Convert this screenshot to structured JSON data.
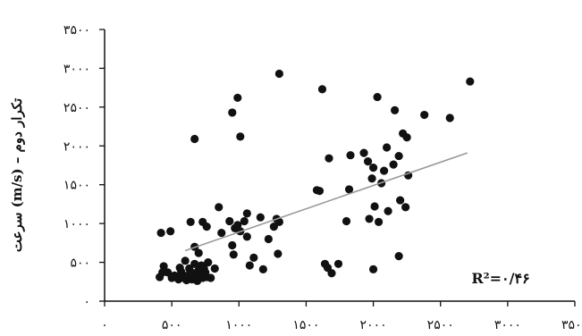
{
  "chart_data": {
    "type": "scatter",
    "title": "",
    "xlabel": "",
    "ylabel": "سرعت (m/s) – تکرار دوم",
    "xlim": [
      0,
      3500
    ],
    "ylim": [
      0,
      3500
    ],
    "x_ticks": [
      0,
      500,
      1000,
      1500,
      2000,
      2500,
      3000,
      3500
    ],
    "y_ticks": [
      0,
      500,
      1000,
      1500,
      2000,
      2500,
      3000,
      3500
    ],
    "x_tick_labels": [
      "۰",
      "۵۰۰",
      "۱۰۰۰",
      "۱۵۰۰",
      "۲۰۰۰",
      "۲۵۰۰",
      "۳۰۰۰",
      "۳۵۰۰"
    ],
    "y_tick_labels": [
      "۰",
      "۵۰۰",
      "۱۰۰۰",
      "۱۵۰۰",
      "۲۰۰۰",
      "۲۵۰۰",
      "۳۰۰۰",
      "۳۵۰۰"
    ],
    "grid": false,
    "annotation": "R²=۰/۴۶",
    "trendline": {
      "x": [
        600,
        2700
      ],
      "y": [
        650,
        1910
      ]
    },
    "points": [
      {
        "x": 410,
        "y": 310
      },
      {
        "x": 430,
        "y": 370
      },
      {
        "x": 440,
        "y": 450
      },
      {
        "x": 470,
        "y": 370
      },
      {
        "x": 500,
        "y": 300
      },
      {
        "x": 520,
        "y": 330
      },
      {
        "x": 550,
        "y": 280
      },
      {
        "x": 560,
        "y": 430
      },
      {
        "x": 570,
        "y": 380
      },
      {
        "x": 580,
        "y": 340
      },
      {
        "x": 590,
        "y": 300
      },
      {
        "x": 600,
        "y": 520
      },
      {
        "x": 610,
        "y": 270
      },
      {
        "x": 620,
        "y": 330
      },
      {
        "x": 630,
        "y": 420
      },
      {
        "x": 640,
        "y": 300
      },
      {
        "x": 650,
        "y": 280
      },
      {
        "x": 660,
        "y": 360
      },
      {
        "x": 670,
        "y": 480
      },
      {
        "x": 680,
        "y": 300
      },
      {
        "x": 690,
        "y": 260
      },
      {
        "x": 700,
        "y": 400
      },
      {
        "x": 710,
        "y": 330
      },
      {
        "x": 720,
        "y": 460
      },
      {
        "x": 730,
        "y": 300
      },
      {
        "x": 740,
        "y": 420
      },
      {
        "x": 750,
        "y": 370
      },
      {
        "x": 760,
        "y": 310
      },
      {
        "x": 770,
        "y": 500
      },
      {
        "x": 790,
        "y": 300
      },
      {
        "x": 820,
        "y": 420
      },
      {
        "x": 420,
        "y": 880
      },
      {
        "x": 490,
        "y": 900
      },
      {
        "x": 640,
        "y": 1020
      },
      {
        "x": 670,
        "y": 700
      },
      {
        "x": 700,
        "y": 620
      },
      {
        "x": 730,
        "y": 1020
      },
      {
        "x": 760,
        "y": 960
      },
      {
        "x": 850,
        "y": 1210
      },
      {
        "x": 870,
        "y": 880
      },
      {
        "x": 930,
        "y": 1030
      },
      {
        "x": 950,
        "y": 720
      },
      {
        "x": 960,
        "y": 600
      },
      {
        "x": 970,
        "y": 940
      },
      {
        "x": 990,
        "y": 980
      },
      {
        "x": 1010,
        "y": 900
      },
      {
        "x": 1040,
        "y": 1030
      },
      {
        "x": 1060,
        "y": 830
      },
      {
        "x": 1060,
        "y": 1130
      },
      {
        "x": 1080,
        "y": 460
      },
      {
        "x": 1110,
        "y": 560
      },
      {
        "x": 1160,
        "y": 1080
      },
      {
        "x": 1180,
        "y": 410
      },
      {
        "x": 1220,
        "y": 800
      },
      {
        "x": 1260,
        "y": 960
      },
      {
        "x": 1280,
        "y": 1060
      },
      {
        "x": 1290,
        "y": 610
      },
      {
        "x": 1300,
        "y": 1020
      },
      {
        "x": 670,
        "y": 2090
      },
      {
        "x": 950,
        "y": 2430
      },
      {
        "x": 990,
        "y": 2620
      },
      {
        "x": 1010,
        "y": 2120
      },
      {
        "x": 1300,
        "y": 2930
      },
      {
        "x": 1580,
        "y": 1430
      },
      {
        "x": 1600,
        "y": 1420
      },
      {
        "x": 1620,
        "y": 2730
      },
      {
        "x": 1640,
        "y": 480
      },
      {
        "x": 1660,
        "y": 430
      },
      {
        "x": 1670,
        "y": 1840
      },
      {
        "x": 1690,
        "y": 360
      },
      {
        "x": 1740,
        "y": 480
      },
      {
        "x": 1800,
        "y": 1030
      },
      {
        "x": 1820,
        "y": 1440
      },
      {
        "x": 1830,
        "y": 1880
      },
      {
        "x": 1930,
        "y": 1910
      },
      {
        "x": 1960,
        "y": 1800
      },
      {
        "x": 1970,
        "y": 1060
      },
      {
        "x": 1990,
        "y": 1580
      },
      {
        "x": 2000,
        "y": 1720
      },
      {
        "x": 2000,
        "y": 410
      },
      {
        "x": 2010,
        "y": 1220
      },
      {
        "x": 2030,
        "y": 2630
      },
      {
        "x": 2040,
        "y": 1020
      },
      {
        "x": 2060,
        "y": 1520
      },
      {
        "x": 2080,
        "y": 1680
      },
      {
        "x": 2100,
        "y": 1980
      },
      {
        "x": 2110,
        "y": 1160
      },
      {
        "x": 2150,
        "y": 1760
      },
      {
        "x": 2160,
        "y": 2460
      },
      {
        "x": 2190,
        "y": 1870
      },
      {
        "x": 2190,
        "y": 580
      },
      {
        "x": 2200,
        "y": 1300
      },
      {
        "x": 2220,
        "y": 2160
      },
      {
        "x": 2240,
        "y": 1210
      },
      {
        "x": 2250,
        "y": 2110
      },
      {
        "x": 2260,
        "y": 1620
      },
      {
        "x": 2380,
        "y": 2400
      },
      {
        "x": 2570,
        "y": 2360
      },
      {
        "x": 2720,
        "y": 2830
      }
    ]
  }
}
